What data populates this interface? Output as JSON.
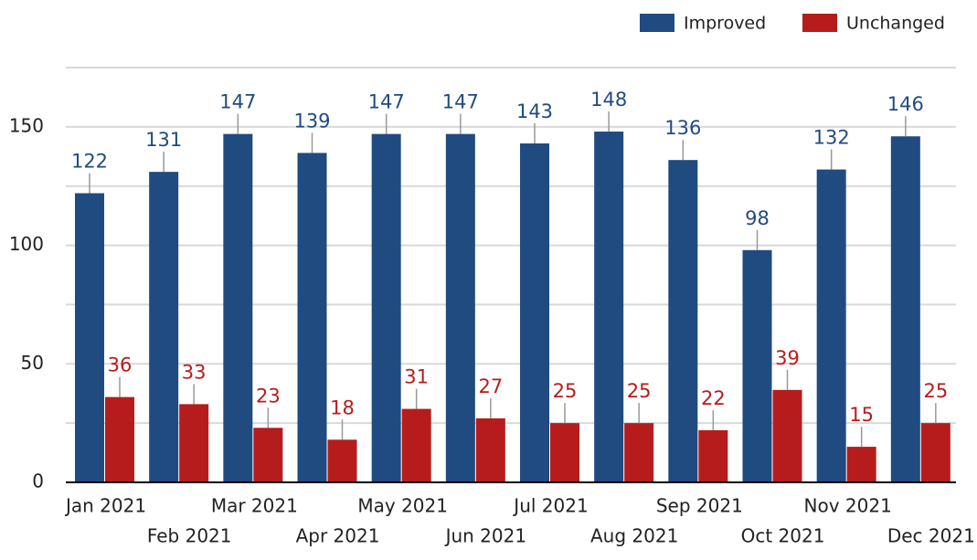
{
  "chart_data": {
    "type": "bar",
    "categories": [
      "Jan 2021",
      "Feb 2021",
      "Mar 2021",
      "Apr 2021",
      "May 2021",
      "Jun 2021",
      "Jul 2021",
      "Aug 2021",
      "Sep 2021",
      "Oct 2021",
      "Nov 2021",
      "Dec 2021"
    ],
    "series": [
      {
        "name": "Improved",
        "color": "#1f4b80",
        "values": [
          122,
          131,
          147,
          139,
          147,
          147,
          143,
          148,
          136,
          98,
          132,
          146
        ]
      },
      {
        "name": "Unchanged",
        "color": "#b71c1c",
        "values": [
          36,
          33,
          23,
          18,
          31,
          27,
          25,
          25,
          22,
          39,
          15,
          25
        ]
      }
    ],
    "ylim": [
      0,
      175
    ],
    "yticks": [
      0,
      50,
      100,
      150
    ],
    "minor_gridlines": [
      25,
      75,
      125,
      175
    ],
    "grid": true,
    "legend": "top-right"
  }
}
